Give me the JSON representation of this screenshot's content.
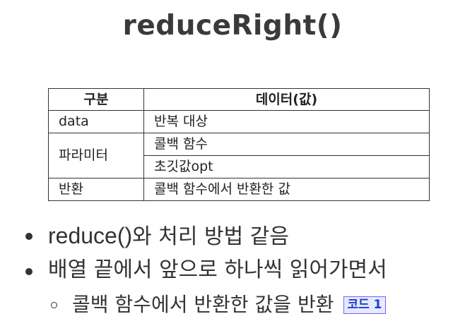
{
  "title": "reduceRight()",
  "table": {
    "headers": [
      "구분",
      "데이터(값)"
    ],
    "rows": {
      "data_label": "data",
      "data_value": "반복 대상",
      "param_label": "파라미터",
      "param_value_1": "콜백 함수",
      "param_value_2": "초깃값opt",
      "return_label": "반환",
      "return_value": "콜백 함수에서 반환한 값"
    }
  },
  "bullets": {
    "b1_code": "reduce()",
    "b1_text": "와 처리 방법 같음",
    "b2_text": "배열 끝에서 앞으로 하나씩 읽어가면서",
    "b3_text": "콜백 함수에서 반환한 값을 반환",
    "code_link": "코드 1"
  },
  "colors": {
    "text": "#333333",
    "link": "#1a3ec9",
    "link_bg": "#e8e8ff"
  }
}
